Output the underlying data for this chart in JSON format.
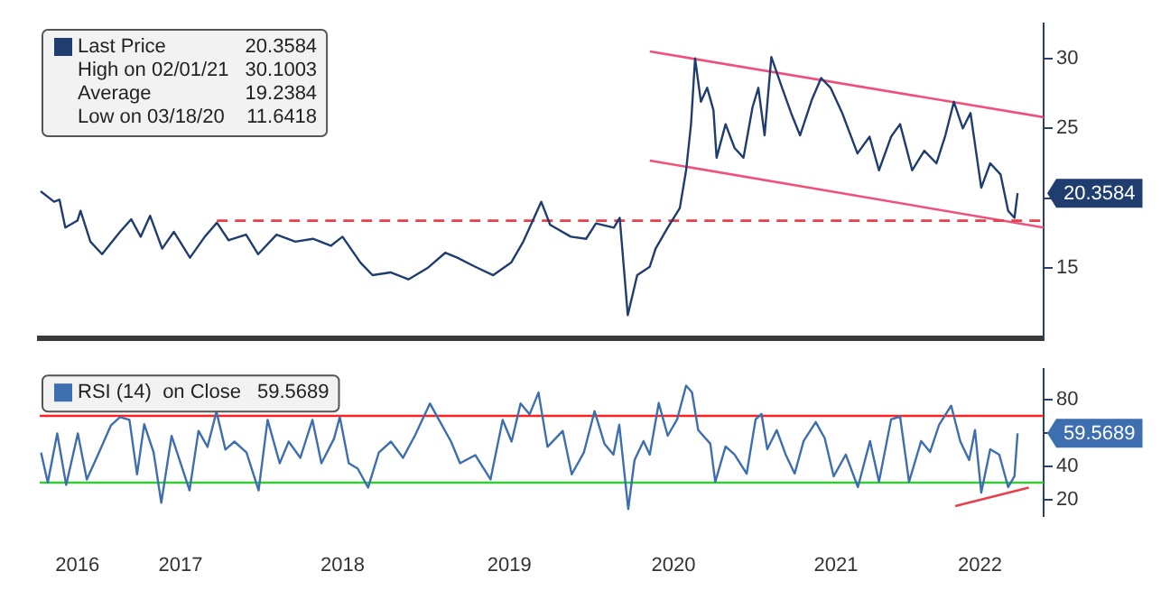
{
  "chart_data": [
    {
      "type": "line",
      "xlim": [
        "2016-08-15",
        "2022-10-01"
      ],
      "ylim": [
        10,
        32.5
      ],
      "yticks": [
        15,
        {
          "value": 20,
          "label": null
        },
        25,
        30
      ],
      "tick_labels": "y",
      "legend": "top left",
      "annotations": [
        "20.3584",
        "High on 02/01/21 30.1003",
        "Average 19.2384",
        "Low on 03/18/20 11.6418"
      ],
      "series": [
        {
          "name": "Last Price",
          "color": "#1f3d6e",
          "x": [
            "2016-08-17",
            "2016-09-16",
            "2016-09-28",
            "2016-10-11",
            "2016-11-07",
            "2016-11-14",
            "2016-12-06",
            "2017-01-01",
            "2017-02-10",
            "2017-03-07",
            "2017-03-28",
            "2017-04-18",
            "2017-05-15",
            "2017-06-10",
            "2017-07-16",
            "2017-08-18",
            "2017-09-14",
            "2017-10-10",
            "2017-11-18",
            "2017-12-15",
            "2018-01-25",
            "2018-03-08",
            "2018-04-16",
            "2018-05-26",
            "2018-06-21",
            "2018-07-31",
            "2018-08-27",
            "2018-10-06",
            "2018-11-15",
            "2018-12-27",
            "2019-02-05",
            "2019-03-04",
            "2019-04-13",
            "2019-05-23",
            "2019-07-02",
            "2019-07-29",
            "2019-08-17",
            "2019-09-07",
            "2019-09-27",
            "2019-11-12",
            "2019-12-16",
            "2020-01-07",
            "2020-02-16",
            "2020-02-29",
            "2020-03-18",
            "2020-04-08",
            "2020-05-06",
            "2020-05-19",
            "2020-06-15",
            "2020-07-12",
            "2020-07-26",
            "2020-08-06",
            "2020-08-15",
            "2020-08-28",
            "2020-09-11",
            "2020-09-25",
            "2020-10-02",
            "2020-10-22",
            "2020-11-11",
            "2020-12-01",
            "2020-12-21",
            "2021-01-03",
            "2021-01-17",
            "2021-02-01",
            "2021-02-25",
            "2021-03-17",
            "2021-04-06",
            "2021-05-03",
            "2021-05-23",
            "2021-06-13",
            "2021-07-09",
            "2021-08-12",
            "2021-09-08",
            "2021-09-29",
            "2021-10-26",
            "2021-11-15",
            "2021-12-12",
            "2022-01-08",
            "2022-02-04",
            "2022-02-24",
            "2022-03-15",
            "2022-04-04",
            "2022-04-21",
            "2022-05-15",
            "2022-06-04",
            "2022-06-27",
            "2022-07-14",
            "2022-07-28",
            "2022-08-04"
          ],
          "values": [
            20.5,
            19.75,
            19.9,
            17.9,
            18.4,
            19.1,
            16.9,
            16,
            17.6,
            18.5,
            17.25,
            18.75,
            16.4,
            17.6,
            15.75,
            17.25,
            18.25,
            17,
            17.4,
            16,
            17.4,
            16.9,
            17.1,
            16.6,
            17.25,
            15.4,
            14.5,
            14.7,
            14.2,
            15,
            16.1,
            15.75,
            15.1,
            14.5,
            15.4,
            16.9,
            18.25,
            19.75,
            18.1,
            17.25,
            17.1,
            18.2,
            17.9,
            18.6,
            11.6418,
            14.5,
            15.1,
            16.4,
            17.9,
            19.3,
            22,
            25.3,
            30,
            26.9,
            27.9,
            26.3,
            22.9,
            25.3,
            23.6,
            22.9,
            26.5,
            27.9,
            24.5,
            30.1003,
            27.9,
            26.1,
            24.5,
            27.1,
            28.6,
            27.9,
            26.1,
            23.2,
            24.4,
            22,
            24.4,
            25.3,
            22,
            23.4,
            22.5,
            24.5,
            26.9,
            25,
            26.1,
            20.75,
            22.5,
            21.7,
            19.1,
            18.6,
            20.3584
          ]
        },
        {
          "color": "#e8404a",
          "line_style": "dashed",
          "x": [
            "2017-09-14",
            "2022-10-01"
          ],
          "values": [
            18.4,
            18.4
          ]
        },
        {
          "color": "#f0507a",
          "x": [
            "2020-05-06",
            "2022-10-01"
          ],
          "values": [
            30.5,
            25.8
          ]
        },
        {
          "color": "#f0507a",
          "x": [
            "2020-05-06",
            "2022-10-01"
          ],
          "values": [
            22.7,
            17.9
          ]
        }
      ]
    },
    {
      "type": "line",
      "xlim": [
        "2016-08-15",
        "2022-10-01"
      ],
      "xticks": [
        {
          "value": "2016-11-07",
          "label": "2016"
        },
        {
          "value": "2017-06-25",
          "label": "2017"
        },
        {
          "value": "2018-06-21",
          "label": "2018"
        },
        {
          "value": "2019-06-28",
          "label": "2019"
        },
        {
          "value": "2020-06-28",
          "label": "2020"
        },
        {
          "value": "2021-06-25",
          "label": "2021"
        },
        {
          "value": "2022-05-12",
          "label": "2022"
        }
      ],
      "ylim": [
        10,
        98
      ],
      "yticks": [
        20,
        40,
        {
          "value": 60,
          "label": null
        },
        80
      ],
      "legend": "top left",
      "annotations": [
        "59.5689"
      ],
      "ref_lines": [
        {
          "axis": "y",
          "value": 70,
          "color": "#ff2020"
        },
        {
          "axis": "y",
          "value": 30,
          "color": "#33cc33"
        }
      ],
      "series": [
        {
          "name": "RSI (14)  on Close",
          "color": "#3d6fb0",
          "x": [
            "2016-08-18",
            "2016-09-02",
            "2016-09-23",
            "2016-10-13",
            "2016-11-08",
            "2016-11-28",
            "2016-12-25",
            "2017-01-21",
            "2017-02-10",
            "2017-03-03",
            "2017-03-20",
            "2017-04-05",
            "2017-04-26",
            "2017-05-13",
            "2017-06-05",
            "2017-07-15",
            "2017-08-04",
            "2017-08-24",
            "2017-09-13",
            "2017-10-03",
            "2017-10-23",
            "2017-11-19",
            "2017-12-16",
            "2018-01-05",
            "2018-02-01",
            "2018-02-21",
            "2018-03-19",
            "2018-04-15",
            "2018-05-05",
            "2018-06-02",
            "2018-06-15",
            "2018-07-05",
            "2018-07-25",
            "2018-08-17",
            "2018-09-10",
            "2018-10-07",
            "2018-11-03",
            "2018-11-29",
            "2019-01-02",
            "2019-01-22",
            "2019-02-18",
            "2019-03-10",
            "2019-04-13",
            "2019-05-17",
            "2019-06-13",
            "2019-07-03",
            "2019-07-23",
            "2019-08-12",
            "2019-09-01",
            "2019-09-21",
            "2019-10-25",
            "2019-11-14",
            "2019-12-11",
            "2020-01-04",
            "2020-01-26",
            "2020-02-15",
            "2020-02-28",
            "2020-03-19",
            "2020-04-02",
            "2020-04-22",
            "2020-05-06",
            "2020-05-26",
            "2020-06-15",
            "2020-07-06",
            "2020-07-26",
            "2020-08-08",
            "2020-08-22",
            "2020-09-18",
            "2020-09-29",
            "2020-10-22",
            "2020-11-11",
            "2020-12-08",
            "2020-12-28",
            "2021-01-10",
            "2021-01-23",
            "2021-02-13",
            "2021-03-05",
            "2021-03-25",
            "2021-04-14",
            "2021-05-11",
            "2021-05-31",
            "2021-06-20",
            "2021-07-17",
            "2021-08-13",
            "2021-09-09",
            "2021-09-29",
            "2021-10-26",
            "2021-11-15",
            "2021-12-05",
            "2022-01-01",
            "2022-01-21",
            "2022-02-10",
            "2022-03-09",
            "2022-03-29",
            "2022-04-18",
            "2022-05-01",
            "2022-05-15",
            "2022-06-04",
            "2022-06-24",
            "2022-07-14",
            "2022-07-28",
            "2022-08-04"
          ],
          "values": [
            48,
            30,
            59.5,
            28.6,
            59.5,
            31.9,
            48,
            64.4,
            69.3,
            67.6,
            35,
            65,
            48,
            18,
            58,
            25.4,
            61,
            51.4,
            72.5,
            49.8,
            54.6,
            48,
            25.4,
            67.6,
            41.6,
            54.6,
            44.9,
            67.6,
            41.6,
            56.3,
            69.3,
            41.6,
            38.4,
            27,
            48,
            54.6,
            44.9,
            58,
            77.4,
            67.6,
            54.6,
            41.6,
            46.5,
            31.9,
            67.6,
            54.6,
            77.4,
            70.9,
            84,
            51.4,
            61,
            35,
            48,
            72.8,
            53.3,
            46.8,
            64.7,
            14.2,
            43.5,
            54.9,
            46.8,
            77.7,
            58.1,
            67.9,
            88.1,
            84.2,
            61.5,
            53.3,
            30.5,
            51.7,
            46.8,
            35.4,
            67.9,
            71.2,
            50,
            61.5,
            46.8,
            35.4,
            54.9,
            66.3,
            56.6,
            33.8,
            46.8,
            27.3,
            54.9,
            30.5,
            67.9,
            69.6,
            30.5,
            54.9,
            48.4,
            64.7,
            76.1,
            54.9,
            43.5,
            61.5,
            24,
            50,
            46.8,
            27.3,
            33.8,
            59.5689
          ]
        },
        {
          "color": "#e8404a",
          "x": [
            "2022-03-18",
            "2022-08-29"
          ],
          "values": [
            16,
            27
          ]
        }
      ]
    }
  ]
}
